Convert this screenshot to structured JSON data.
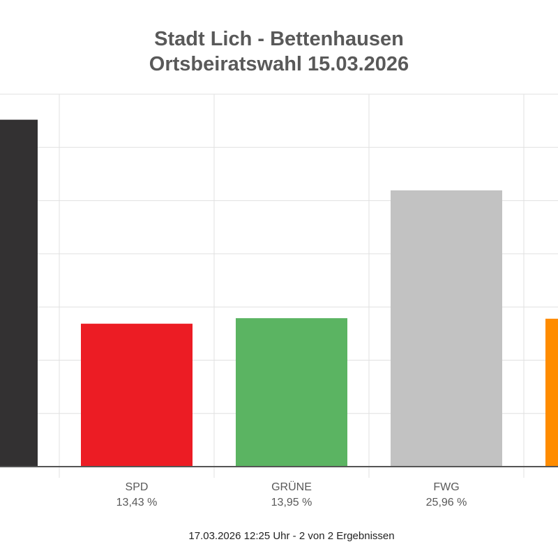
{
  "title": {
    "line1": "Stadt Lich - Bettenhausen",
    "line2": "Ortsbeiratswahl 15.03.2026"
  },
  "chart_data": {
    "type": "bar",
    "title": "Stadt Lich - Bettenhausen Ortsbeiratswahl 15.03.2026",
    "ylim": [
      0,
      35
    ],
    "grid": true,
    "categories": [
      "",
      "SPD",
      "GRÜNE",
      "FWG",
      ""
    ],
    "values": [
      32.6,
      13.43,
      13.95,
      25.96,
      13.9
    ],
    "value_labels": [
      "%",
      "13,43 %",
      "13,95 %",
      "25,96 %",
      ""
    ],
    "colors": [
      "#333132",
      "#ec1c24",
      "#5bb462",
      "#c2c2c2",
      "#ff8c00"
    ]
  },
  "footer": {
    "status": "17.03.2026 12:25 Uhr - 2 von 2 Ergebnissen"
  }
}
